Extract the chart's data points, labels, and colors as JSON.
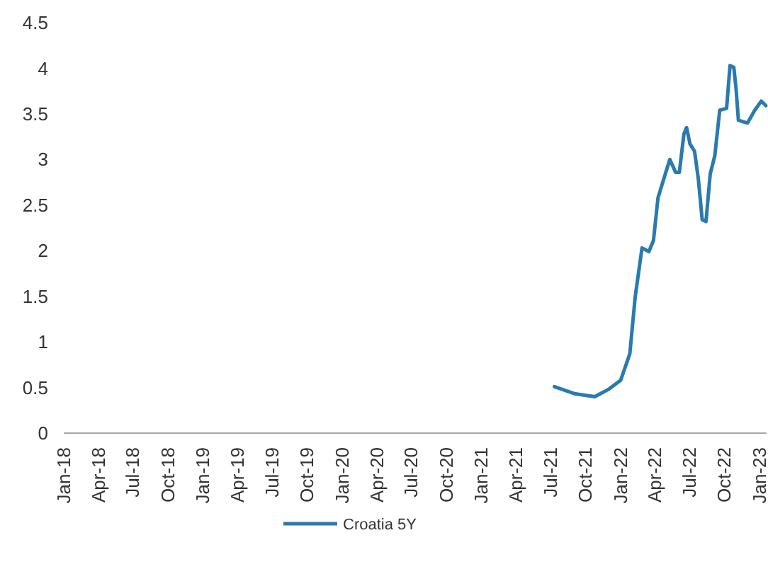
{
  "chart_data": {
    "type": "line",
    "xlim": [
      "2018-01-01",
      "2023-01-20"
    ],
    "xticks": [
      {
        "value": "2018-01-01",
        "label": "Jan-18"
      },
      {
        "value": "2018-04-01",
        "label": "Apr-18"
      },
      {
        "value": "2018-07-01",
        "label": "Jul-18"
      },
      {
        "value": "2018-10-01",
        "label": "Oct-18"
      },
      {
        "value": "2019-01-01",
        "label": "Jan-19"
      },
      {
        "value": "2019-04-01",
        "label": "Apr-19"
      },
      {
        "value": "2019-07-01",
        "label": "Jul-19"
      },
      {
        "value": "2019-10-01",
        "label": "Oct-19"
      },
      {
        "value": "2020-01-01",
        "label": "Jan-20"
      },
      {
        "value": "2020-04-01",
        "label": "Apr-20"
      },
      {
        "value": "2020-07-01",
        "label": "Jul-20"
      },
      {
        "value": "2020-10-01",
        "label": "Oct-20"
      },
      {
        "value": "2021-01-01",
        "label": "Jan-21"
      },
      {
        "value": "2021-04-01",
        "label": "Apr-21"
      },
      {
        "value": "2021-07-01",
        "label": "Jul-21"
      },
      {
        "value": "2021-10-01",
        "label": "Oct-21"
      },
      {
        "value": "2022-01-01",
        "label": "Jan-22"
      },
      {
        "value": "2022-04-01",
        "label": "Apr-22"
      },
      {
        "value": "2022-07-01",
        "label": "Jul-22"
      },
      {
        "value": "2022-10-01",
        "label": "Oct-22"
      },
      {
        "value": "2023-01-01",
        "label": "Jan-23"
      }
    ],
    "ylim": [
      0,
      4.5
    ],
    "yticks": [
      0,
      0.5,
      1,
      1.5,
      2,
      2.5,
      3,
      3.5,
      4,
      4.5
    ],
    "grid": false,
    "legend": "bottom",
    "marker": "none",
    "line_style": "solid",
    "x": [
      "2021-07-12",
      "2021-09-05",
      "2021-10-26",
      "2021-12-01",
      "2022-01-02",
      "2022-01-26",
      "2022-02-09",
      "2022-02-27",
      "2022-03-17",
      "2022-03-29",
      "2022-04-10",
      "2022-04-29",
      "2022-05-11",
      "2022-05-26",
      "2022-06-05",
      "2022-06-17",
      "2022-06-24",
      "2022-07-03",
      "2022-07-15",
      "2022-07-25",
      "2022-08-04",
      "2022-08-14",
      "2022-08-25",
      "2022-09-06",
      "2022-09-19",
      "2022-10-07",
      "2022-10-16",
      "2022-10-26",
      "2022-11-01",
      "2022-11-07",
      "2022-12-01",
      "2022-12-20",
      "2023-01-06",
      "2023-01-18"
    ],
    "series": [
      {
        "name": "Croatia 5Y",
        "color": "#2a7ab0",
        "values": [
          0.51,
          0.43,
          0.4,
          0.48,
          0.58,
          0.87,
          1.49,
          2.03,
          1.99,
          2.11,
          2.58,
          2.84,
          3.0,
          2.86,
          2.86,
          3.28,
          3.35,
          3.17,
          3.09,
          2.78,
          2.34,
          2.32,
          2.84,
          3.04,
          3.54,
          3.56,
          4.03,
          4.01,
          3.77,
          3.43,
          3.4,
          3.54,
          3.64,
          3.59
        ]
      }
    ]
  }
}
